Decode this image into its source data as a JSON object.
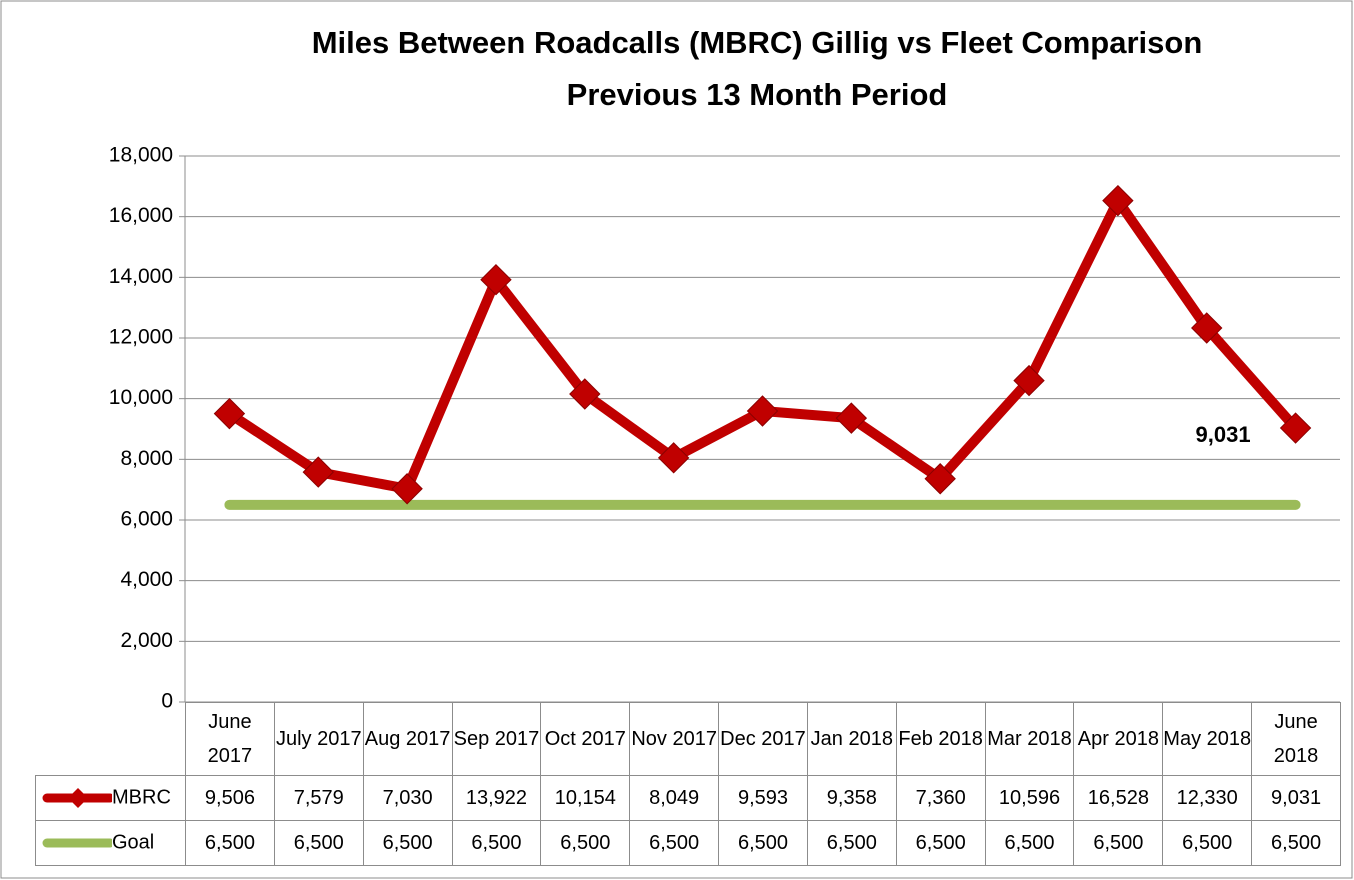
{
  "chart_data": {
    "type": "line",
    "title": "Miles Between Roadcalls (MBRC) Gillig vs Fleet Comparison",
    "subtitle": "Previous 13 Month Period",
    "categories": [
      "June 2017",
      "July 2017",
      "Aug 2017",
      "Sep 2017",
      "Oct 2017",
      "Nov 2017",
      "Dec 2017",
      "Jan 2018",
      "Feb 2018",
      "Mar 2018",
      "Apr 2018",
      "May 2018",
      "June 2018"
    ],
    "series": [
      {
        "name": "MBRC",
        "color": "#c00000",
        "values": [
          9506,
          7579,
          7030,
          13922,
          10154,
          8049,
          9593,
          9358,
          7360,
          10596,
          16528,
          12330,
          9031
        ],
        "value_labels": [
          "9,506",
          "7,579",
          "7,030",
          "13,922",
          "10,154",
          "8,049",
          "9,593",
          "9,358",
          "7,360",
          "10,596",
          "16,528",
          "12,330",
          "9,031"
        ]
      },
      {
        "name": "Goal",
        "color": "#9bbb59",
        "values": [
          6500,
          6500,
          6500,
          6500,
          6500,
          6500,
          6500,
          6500,
          6500,
          6500,
          6500,
          6500,
          6500
        ],
        "value_labels": [
          "6,500",
          "6,500",
          "6,500",
          "6,500",
          "6,500",
          "6,500",
          "6,500",
          "6,500",
          "6,500",
          "6,500",
          "6,500",
          "6,500",
          "6,500"
        ]
      }
    ],
    "ylim": [
      0,
      18000
    ],
    "yticks": [
      0,
      {
        "value": 2000,
        "label": "2,000"
      },
      {
        "value": 4000,
        "label": "4,000"
      },
      {
        "value": 6000,
        "label": "6,000"
      },
      {
        "value": 8000,
        "label": "8,000"
      },
      {
        "value": 10000,
        "label": "10,000"
      },
      {
        "value": 12000,
        "label": "12,000"
      },
      {
        "value": 14000,
        "label": "14,000"
      },
      {
        "value": 16000,
        "label": "16,000"
      },
      {
        "value": 18000,
        "label": "18,000"
      }
    ],
    "grid": true
  }
}
